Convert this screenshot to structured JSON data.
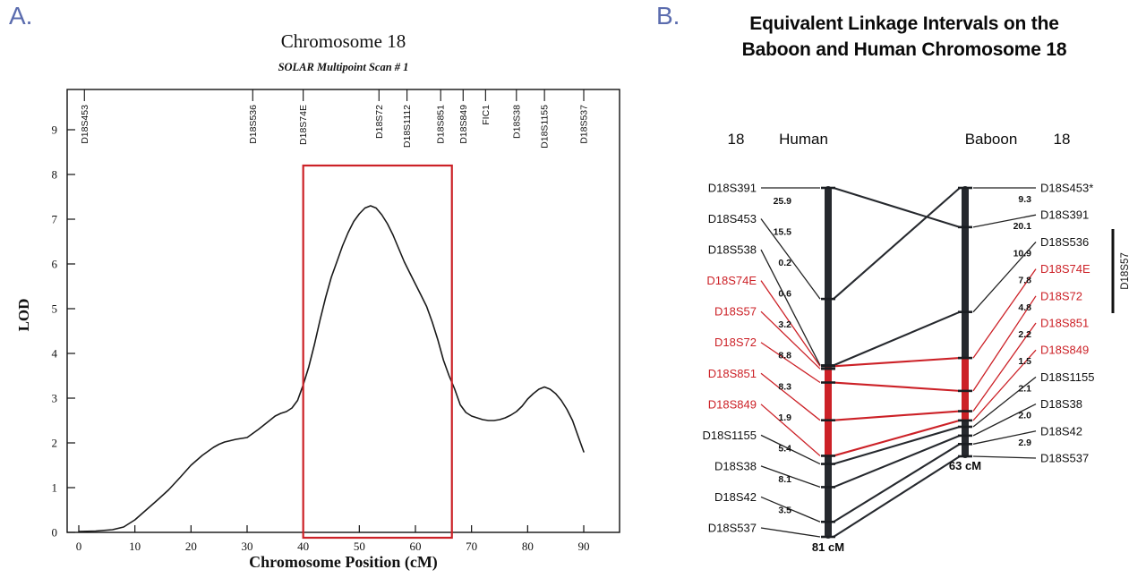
{
  "panel_letters": {
    "a": "A.",
    "b": "B."
  },
  "colors": {
    "red": "#cc2127",
    "bar": "#26292e",
    "curve": "#1a1a1a",
    "panel_letter": "#5b6cae"
  },
  "chart_data": [
    {
      "id": "lod_scan",
      "type": "line",
      "title": "Chromosome 18",
      "subtitle": "SOLAR Multipoint Scan # 1",
      "xlabel": "Chromosome Position (cM)",
      "ylabel": "LOD",
      "xlim": [
        -2,
        96
      ],
      "ylim": [
        0,
        9.9
      ],
      "grid": false,
      "x_ticks": [
        0,
        10,
        20,
        30,
        40,
        50,
        60,
        70,
        80,
        90
      ],
      "y_ticks": [
        0,
        1,
        2,
        3,
        4,
        5,
        6,
        7,
        8,
        9
      ],
      "top_markers": [
        {
          "name": "D18S453",
          "cm": 1
        },
        {
          "name": "D18S536",
          "cm": 31
        },
        {
          "name": "D18S74E",
          "cm": 40
        },
        {
          "name": "D18S72",
          "cm": 53.5
        },
        {
          "name": "D18S1112",
          "cm": 58.5
        },
        {
          "name": "D18S851",
          "cm": 64.5
        },
        {
          "name": "D18S849",
          "cm": 68.5
        },
        {
          "name": "FIC1",
          "cm": 72.5
        },
        {
          "name": "D18S38",
          "cm": 78
        },
        {
          "name": "D18S1155",
          "cm": 83
        },
        {
          "name": "D18S537",
          "cm": 90
        }
      ],
      "highlight_box": {
        "x_start": 40,
        "x_end": 66.5,
        "lod_top": 8.2
      },
      "peak": {
        "x": 52,
        "lod": 7.3
      },
      "points": [
        [
          0,
          0.02
        ],
        [
          3,
          0.03
        ],
        [
          6,
          0.06
        ],
        [
          8,
          0.12
        ],
        [
          10,
          0.28
        ],
        [
          12,
          0.5
        ],
        [
          14,
          0.72
        ],
        [
          16,
          0.95
        ],
        [
          18,
          1.22
        ],
        [
          20,
          1.5
        ],
        [
          22,
          1.72
        ],
        [
          24,
          1.9
        ],
        [
          25,
          1.97
        ],
        [
          26,
          2.02
        ],
        [
          28,
          2.08
        ],
        [
          30,
          2.12
        ],
        [
          32,
          2.3
        ],
        [
          34,
          2.5
        ],
        [
          35,
          2.6
        ],
        [
          36,
          2.66
        ],
        [
          37,
          2.7
        ],
        [
          38,
          2.78
        ],
        [
          39,
          2.95
        ],
        [
          40,
          3.3
        ],
        [
          41,
          3.7
        ],
        [
          42,
          4.2
        ],
        [
          43,
          4.75
        ],
        [
          44,
          5.25
        ],
        [
          45,
          5.7
        ],
        [
          46,
          6.05
        ],
        [
          47,
          6.4
        ],
        [
          48,
          6.7
        ],
        [
          49,
          6.95
        ],
        [
          50,
          7.12
        ],
        [
          51,
          7.25
        ],
        [
          52,
          7.3
        ],
        [
          53,
          7.25
        ],
        [
          54,
          7.1
        ],
        [
          55,
          6.9
        ],
        [
          56,
          6.65
        ],
        [
          57,
          6.35
        ],
        [
          58,
          6.05
        ],
        [
          59,
          5.8
        ],
        [
          60,
          5.55
        ],
        [
          61,
          5.3
        ],
        [
          62,
          5.05
        ],
        [
          63,
          4.7
        ],
        [
          64,
          4.3
        ],
        [
          65,
          3.85
        ],
        [
          66,
          3.5
        ],
        [
          67,
          3.2
        ],
        [
          68,
          2.85
        ],
        [
          69,
          2.68
        ],
        [
          70,
          2.6
        ],
        [
          71,
          2.56
        ],
        [
          72,
          2.52
        ],
        [
          73,
          2.5
        ],
        [
          74,
          2.5
        ],
        [
          75,
          2.52
        ],
        [
          76,
          2.56
        ],
        [
          77,
          2.62
        ],
        [
          78,
          2.7
        ],
        [
          79,
          2.82
        ],
        [
          80,
          2.98
        ],
        [
          81,
          3.1
        ],
        [
          82,
          3.2
        ],
        [
          83,
          3.25
        ],
        [
          84,
          3.2
        ],
        [
          85,
          3.1
        ],
        [
          86,
          2.95
        ],
        [
          87,
          2.75
        ],
        [
          88,
          2.5
        ],
        [
          89,
          2.15
        ],
        [
          90,
          1.8
        ]
      ]
    },
    {
      "id": "linkage_map",
      "type": "table",
      "title_line1": "Equivalent Linkage Intervals on the",
      "title_line2": "Baboon and Human Chromosome 18",
      "header": {
        "left_chrom": "18",
        "human": "Human",
        "baboon": "Baboon",
        "right_chrom": "18"
      },
      "human_total": "81 cM",
      "baboon_total": "63 cM",
      "bracket_label": "D18S57",
      "human_markers": [
        {
          "name": "D18S391",
          "red": false,
          "dist": "25.9"
        },
        {
          "name": "D18S453",
          "red": false,
          "dist": "15.5"
        },
        {
          "name": "D18S538",
          "red": false,
          "dist": "0.2"
        },
        {
          "name": "D18S74E",
          "red": true,
          "dist": "0.6"
        },
        {
          "name": "D18S57",
          "red": true,
          "dist": "3.2"
        },
        {
          "name": "D18S72",
          "red": true,
          "dist": "8.8"
        },
        {
          "name": "D18S851",
          "red": true,
          "dist": "8.3"
        },
        {
          "name": "D18S849",
          "red": true,
          "dist": "1.9"
        },
        {
          "name": "D18S1155",
          "red": false,
          "dist": "5.4"
        },
        {
          "name": "D18S38",
          "red": false,
          "dist": "8.1"
        },
        {
          "name": "D18S42",
          "red": false,
          "dist": "3.5"
        },
        {
          "name": "D18S537",
          "red": false,
          "dist": null
        }
      ],
      "baboon_markers": [
        {
          "name": "D18S453*",
          "red": false,
          "dist": "9.3"
        },
        {
          "name": "D18S391",
          "red": false,
          "dist": "20.1"
        },
        {
          "name": "D18S536",
          "red": false,
          "dist": "10.9"
        },
        {
          "name": "D18S74E",
          "red": true,
          "dist": "7.8"
        },
        {
          "name": "D18S72",
          "red": true,
          "dist": "4.8"
        },
        {
          "name": "D18S851",
          "red": true,
          "dist": "2.2"
        },
        {
          "name": "D18S849",
          "red": true,
          "dist": "1.5"
        },
        {
          "name": "D18S1155",
          "red": false,
          "dist": "2.1"
        },
        {
          "name": "D18S38",
          "red": false,
          "dist": "2.0"
        },
        {
          "name": "D18S42",
          "red": false,
          "dist": "2.9"
        },
        {
          "name": "D18S537",
          "red": false,
          "dist": null
        }
      ],
      "links": [
        [
          "D18S391",
          "D18S391"
        ],
        [
          "D18S453",
          "D18S453*"
        ],
        [
          "D18S538",
          "D18S536"
        ],
        [
          "D18S74E",
          "D18S74E"
        ],
        [
          "D18S72",
          "D18S72"
        ],
        [
          "D18S851",
          "D18S851"
        ],
        [
          "D18S849",
          "D18S849"
        ],
        [
          "D18S1155",
          "D18S1155"
        ],
        [
          "D18S38",
          "D18S38"
        ],
        [
          "D18S42",
          "D18S42"
        ],
        [
          "D18S537",
          "D18S537"
        ]
      ]
    }
  ]
}
